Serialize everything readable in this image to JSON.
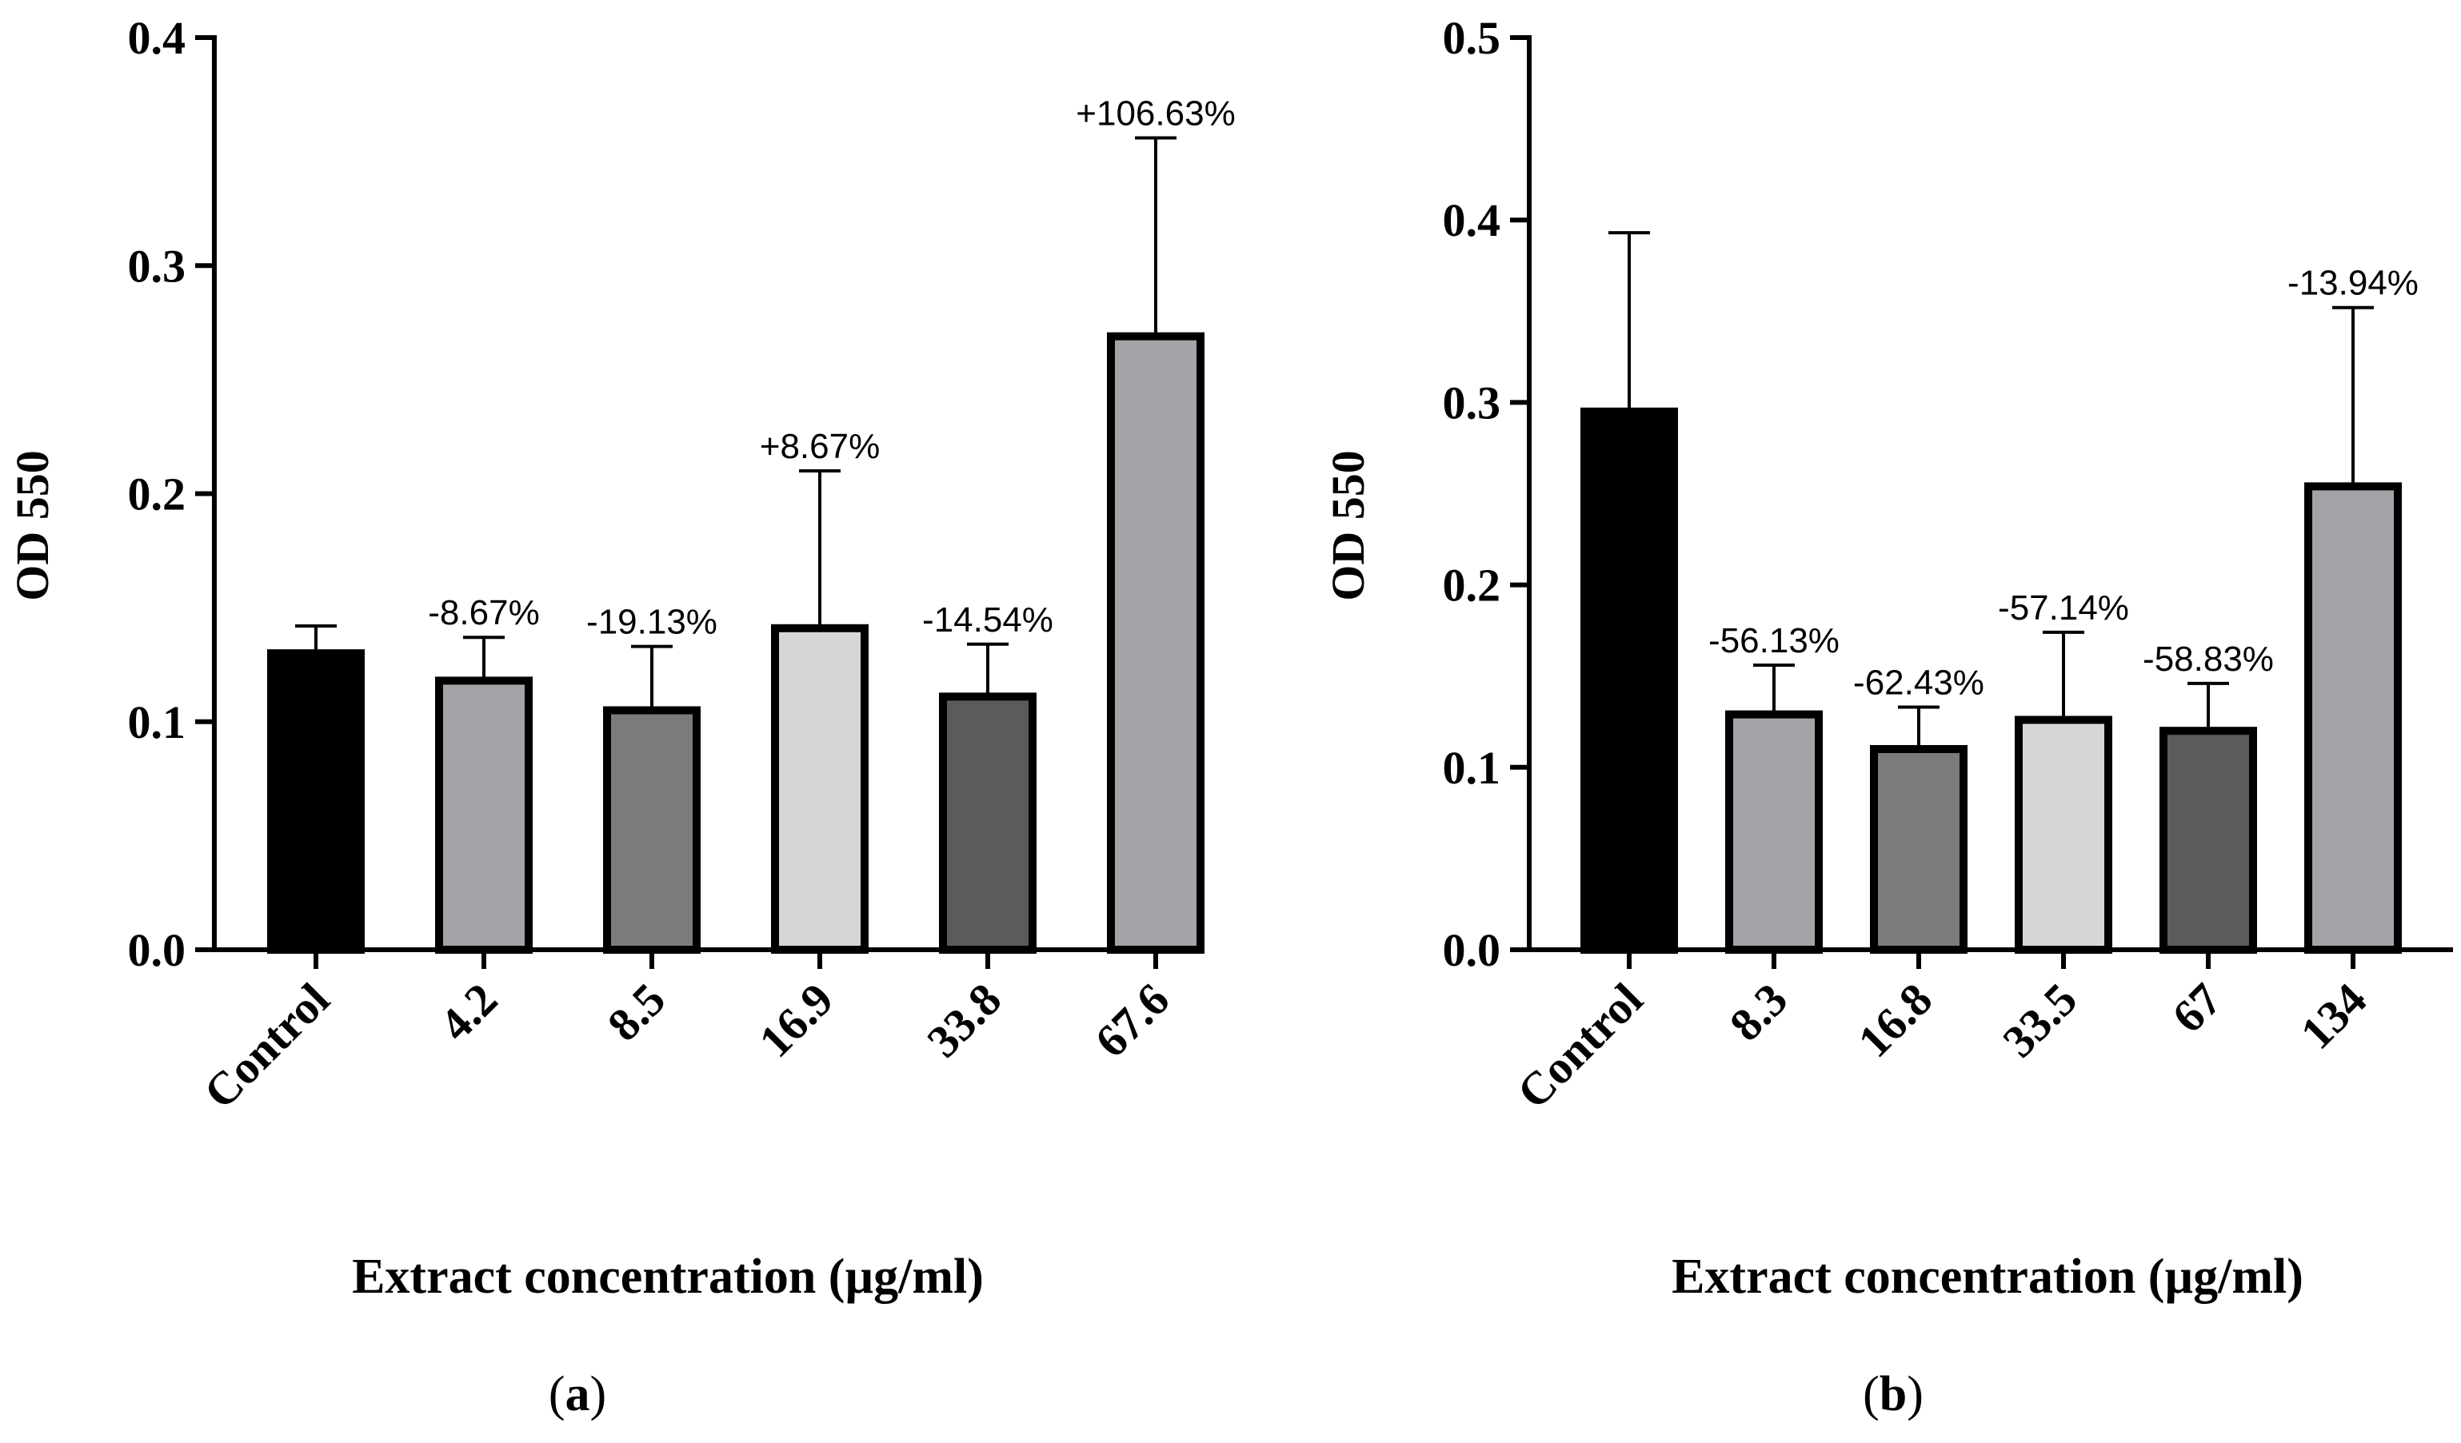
{
  "chart_data": [
    {
      "type": "bar",
      "panel": "a",
      "caption_open": "(",
      "caption_letter": "a",
      "caption_close": ")",
      "ylabel": "OD 550",
      "xlabel": "Extract concentration (µg/ml)",
      "ylim": [
        0,
        0.4
      ],
      "yticks": [
        0.0,
        0.1,
        0.2,
        0.3,
        0.4
      ],
      "ytick_labels": [
        "0.0",
        "0.1",
        "0.2",
        "0.3",
        "0.4"
      ],
      "categories": [
        "Control",
        "4.2",
        "8.5",
        "16.9",
        "33.8",
        "67.6"
      ],
      "values": [
        0.13,
        0.118,
        0.105,
        0.141,
        0.111,
        0.269
      ],
      "errors": [
        0.012,
        0.019,
        0.028,
        0.069,
        0.023,
        0.087
      ],
      "annotations": [
        "",
        "-8.67%",
        "-19.13%",
        "+8.67%",
        "-14.54%",
        "+106.63%"
      ],
      "bar_colors": [
        "#000000",
        "#a3a3a8",
        "#7b7b7b",
        "#d6d6d6",
        "#5b5b5b",
        "#a3a3a8"
      ]
    },
    {
      "type": "bar",
      "panel": "b",
      "caption_open": "(",
      "caption_letter": "b",
      "caption_close": ")",
      "ylabel": "OD 550",
      "xlabel": "Extract concentration (µg/ml)",
      "ylim": [
        0,
        0.5
      ],
      "yticks": [
        0.0,
        0.1,
        0.2,
        0.3,
        0.4,
        0.5
      ],
      "ytick_labels": [
        "0.0",
        "0.1",
        "0.2",
        "0.3",
        "0.4",
        "0.5"
      ],
      "categories": [
        "Control",
        "8.3",
        "16.8",
        "33.5",
        "67",
        "134"
      ],
      "values": [
        0.295,
        0.129,
        0.11,
        0.126,
        0.12,
        0.254
      ],
      "errors": [
        0.098,
        0.027,
        0.023,
        0.048,
        0.026,
        0.098
      ],
      "annotations": [
        "",
        "-56.13%",
        "-62.43%",
        "-57.14%",
        "-58.83%",
        "-13.94%"
      ],
      "bar_colors": [
        "#000000",
        "#a3a3a8",
        "#7b7b7b",
        "#d6d6d6",
        "#5b5b5b",
        "#a3a3a8"
      ]
    }
  ]
}
